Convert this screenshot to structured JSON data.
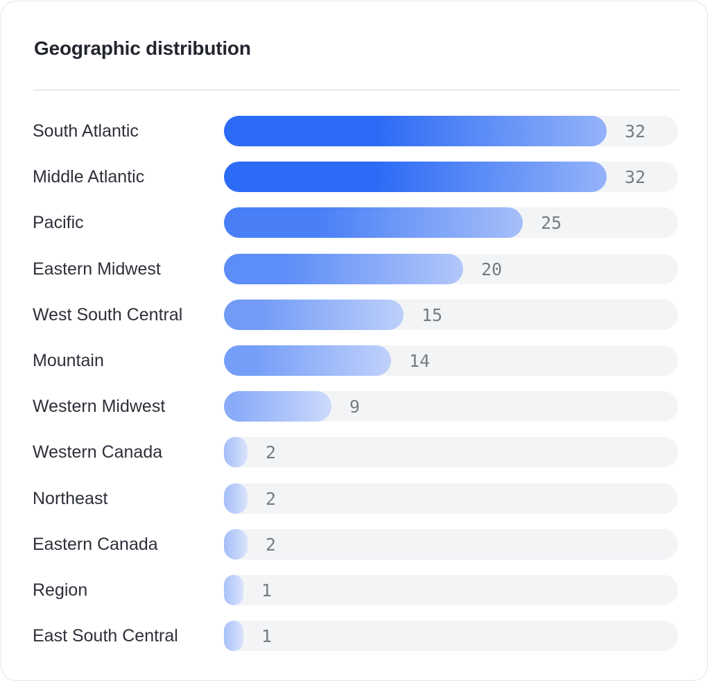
{
  "card": {
    "title": "Geographic distribution"
  },
  "chart_data": {
    "type": "bar",
    "orientation": "horizontal",
    "categories": [
      "South Atlantic",
      "Middle Atlantic",
      "Pacific",
      "Eastern Midwest",
      "West South Central",
      "Mountain",
      "Western Midwest",
      "Western Canada",
      "Northeast",
      "Eastern Canada",
      "Region",
      "East South Central"
    ],
    "values": [
      32,
      32,
      25,
      20,
      15,
      14,
      9,
      2,
      2,
      2,
      1,
      1
    ],
    "xlim": [
      0,
      38
    ],
    "title": "Geographic distribution",
    "xlabel": "",
    "ylabel": "",
    "grid": false,
    "data_labels": true
  },
  "colors": {
    "bar_dark": "#2c6bf5",
    "bar_light": "#dae3fb",
    "track": "#f3f4f6",
    "label_text": "#2d3039",
    "value_text": "#777b84"
  }
}
